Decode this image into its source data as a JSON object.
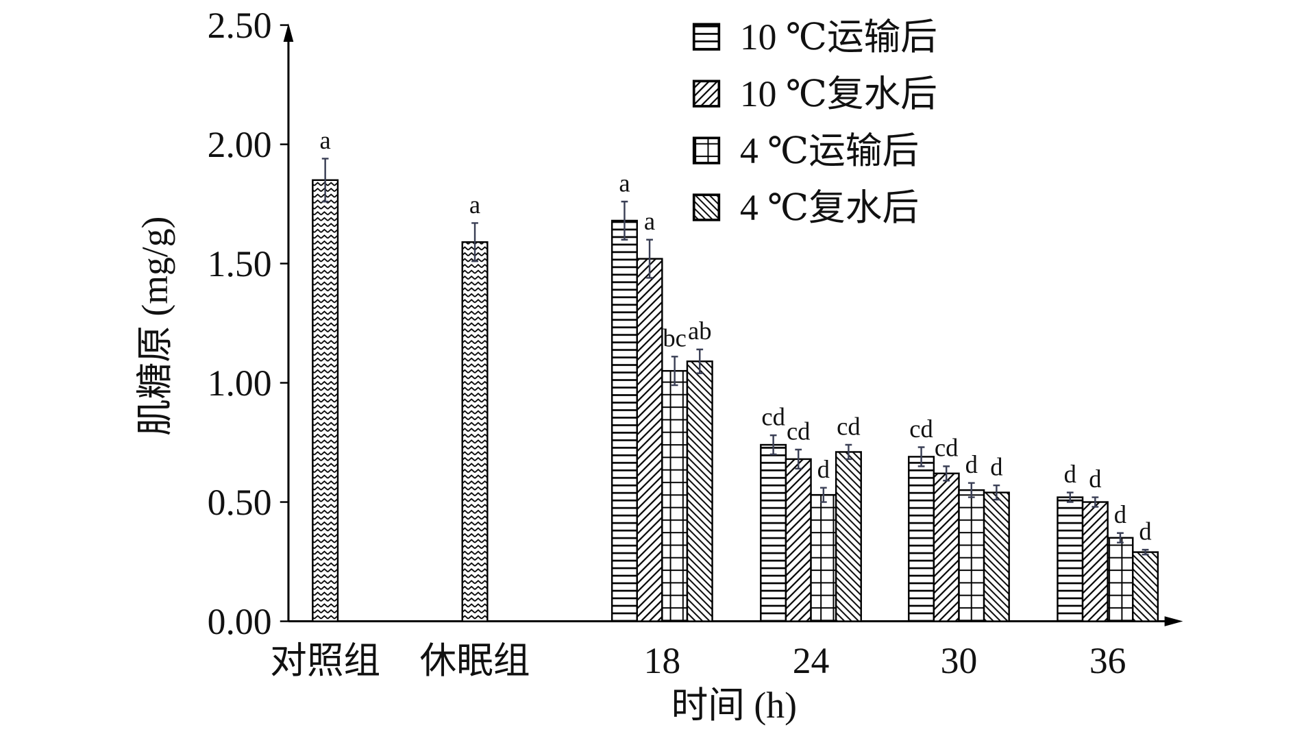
{
  "chart_data": {
    "type": "bar",
    "y_label": "肌糖原 (mg/g)",
    "x_label": "时间 (h)",
    "categories": [
      "对照组",
      "休眠组",
      "18",
      "24",
      "30",
      "36"
    ],
    "ylim": [
      0,
      2.5
    ],
    "yticks": [
      {
        "value": 0,
        "label": "0.00"
      },
      {
        "value": 0.5,
        "label": "0.50"
      },
      {
        "value": 1,
        "label": "1.00"
      },
      {
        "value": 1.5,
        "label": "1.50"
      },
      {
        "value": 2,
        "label": "2.00"
      },
      {
        "value": 2.5,
        "label": "2.50"
      }
    ],
    "single_values": [
      1.85,
      1.59,
      null,
      null,
      null,
      null
    ],
    "single_errors": [
      0.09,
      0.08,
      null,
      null,
      null,
      null
    ],
    "single_letters": [
      "a",
      "a",
      null,
      null,
      null,
      null
    ],
    "series": [
      {
        "name": "10 ℃运输后",
        "color": "#000000",
        "values": [
          null,
          null,
          1.68,
          0.74,
          0.69,
          0.52
        ],
        "errors": [
          null,
          null,
          0.08,
          0.04,
          0.04,
          0.02
        ],
        "letters": [
          null,
          null,
          "a",
          "cd",
          "cd",
          "d"
        ]
      },
      {
        "name": "10 ℃复水后",
        "color": "#000000",
        "values": [
          null,
          null,
          1.52,
          0.68,
          0.62,
          0.5
        ],
        "errors": [
          null,
          null,
          0.08,
          0.04,
          0.03,
          0.02
        ],
        "letters": [
          null,
          null,
          "a",
          "cd",
          "cd",
          "d"
        ]
      },
      {
        "name": "4 ℃运输后",
        "color": "#000000",
        "values": [
          null,
          null,
          1.05,
          0.53,
          0.55,
          0.35
        ],
        "errors": [
          null,
          null,
          0.06,
          0.03,
          0.03,
          0.02
        ],
        "letters": [
          null,
          null,
          "bc",
          "d",
          "d",
          "d"
        ]
      },
      {
        "name": "4 ℃复水后",
        "color": "#000000",
        "values": [
          null,
          null,
          1.09,
          0.71,
          0.54,
          0.29
        ],
        "errors": [
          null,
          null,
          0.05,
          0.03,
          0.03,
          0.01
        ],
        "letters": [
          null,
          null,
          "ab",
          "cd",
          "d",
          "d"
        ]
      }
    ]
  }
}
